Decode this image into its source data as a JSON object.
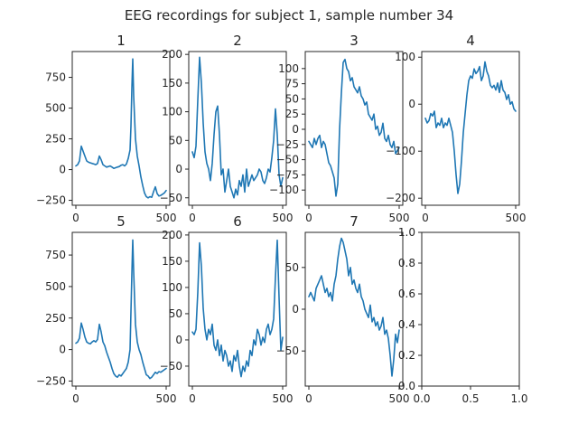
{
  "figure": {
    "title": "EEG recordings for subject 1, sample number 34",
    "line_color": "#1f77b4",
    "background": "#ffffff"
  },
  "chart_data": [
    {
      "type": "line",
      "title": "1",
      "xlim": [
        -20,
        520
      ],
      "ylim": [
        -290,
        960
      ],
      "xticks": [
        0,
        500
      ],
      "yticks": [
        -250,
        0,
        250,
        500,
        750
      ],
      "x": [
        0,
        10,
        20,
        30,
        40,
        50,
        60,
        70,
        80,
        90,
        100,
        110,
        120,
        130,
        140,
        150,
        160,
        170,
        180,
        190,
        200,
        210,
        220,
        230,
        240,
        250,
        260,
        270,
        280,
        290,
        300,
        305,
        310,
        315,
        320,
        330,
        340,
        350,
        360,
        370,
        380,
        390,
        400,
        410,
        420,
        430,
        440,
        450,
        460,
        470,
        480,
        490,
        500
      ],
      "y": [
        30,
        40,
        70,
        190,
        150,
        110,
        70,
        60,
        55,
        50,
        45,
        40,
        50,
        110,
        80,
        40,
        30,
        20,
        25,
        30,
        20,
        10,
        15,
        20,
        25,
        35,
        40,
        30,
        45,
        90,
        160,
        350,
        660,
        900,
        600,
        250,
        110,
        30,
        -60,
        -130,
        -190,
        -220,
        -230,
        -220,
        -225,
        -180,
        -140,
        -195,
        -215,
        -210,
        -200,
        -190,
        -170
      ]
    },
    {
      "type": "line",
      "title": "2",
      "xlim": [
        -20,
        520
      ],
      "ylim": [
        -63,
        205
      ],
      "xticks": [
        0,
        500
      ],
      "yticks": [
        -50,
        0,
        50,
        100,
        150,
        200
      ],
      "x": [
        0,
        10,
        20,
        30,
        40,
        50,
        60,
        70,
        80,
        90,
        100,
        110,
        120,
        130,
        140,
        150,
        160,
        170,
        180,
        190,
        200,
        210,
        220,
        230,
        240,
        250,
        260,
        270,
        280,
        290,
        300,
        310,
        320,
        330,
        340,
        350,
        360,
        370,
        380,
        390,
        400,
        410,
        420,
        430,
        440,
        450,
        460,
        470,
        480,
        490,
        500
      ],
      "y": [
        30,
        20,
        40,
        120,
        195,
        150,
        80,
        30,
        10,
        0,
        -20,
        10,
        60,
        100,
        110,
        60,
        -10,
        0,
        -40,
        -20,
        0,
        -30,
        -40,
        -50,
        -35,
        -45,
        -20,
        -30,
        -10,
        -40,
        0,
        -30,
        -20,
        -10,
        -20,
        -15,
        -10,
        0,
        -5,
        -20,
        -25,
        -15,
        0,
        -5,
        20,
        50,
        105,
        60,
        -10,
        -30,
        -15
      ]
    },
    {
      "type": "line",
      "title": "3",
      "xlim": [
        -20,
        520
      ],
      "ylim": [
        -125,
        128
      ],
      "xticks": [
        0,
        500
      ],
      "yticks": [
        -100,
        -75,
        -50,
        -25,
        0,
        25,
        50,
        75,
        100
      ],
      "x": [
        0,
        10,
        20,
        30,
        40,
        50,
        60,
        70,
        80,
        90,
        100,
        110,
        120,
        130,
        140,
        150,
        160,
        170,
        180,
        190,
        200,
        210,
        220,
        230,
        240,
        250,
        260,
        270,
        280,
        290,
        300,
        310,
        320,
        330,
        340,
        350,
        360,
        370,
        380,
        390,
        400,
        410,
        420,
        430,
        440,
        450,
        460,
        470,
        480,
        490,
        500
      ],
      "y": [
        -20,
        -25,
        -30,
        -15,
        -25,
        -15,
        -10,
        -30,
        -20,
        -25,
        -40,
        -55,
        -60,
        -70,
        -80,
        -110,
        -90,
        0,
        60,
        110,
        115,
        100,
        95,
        80,
        85,
        70,
        65,
        60,
        70,
        55,
        50,
        40,
        45,
        25,
        20,
        15,
        25,
        0,
        5,
        -10,
        -5,
        10,
        -15,
        -20,
        -10,
        -25,
        -30,
        -20,
        -40,
        -35,
        -30
      ]
    },
    {
      "type": "line",
      "title": "4",
      "xlim": [
        -20,
        520
      ],
      "ylim": [
        -215,
        112
      ],
      "xticks": [
        0,
        500
      ],
      "yticks": [
        -200,
        -100,
        0,
        100
      ],
      "x": [
        0,
        10,
        20,
        30,
        40,
        50,
        60,
        70,
        80,
        90,
        100,
        110,
        120,
        130,
        140,
        150,
        160,
        170,
        180,
        190,
        200,
        210,
        220,
        230,
        240,
        250,
        260,
        270,
        280,
        290,
        300,
        310,
        320,
        330,
        340,
        350,
        360,
        370,
        380,
        390,
        400,
        410,
        420,
        430,
        440,
        450,
        460,
        470,
        480,
        490,
        500
      ],
      "y": [
        -30,
        -40,
        -35,
        -20,
        -25,
        -15,
        -50,
        -40,
        -45,
        -30,
        -50,
        -40,
        -45,
        -30,
        -45,
        -60,
        -100,
        -150,
        -190,
        -170,
        -120,
        -60,
        -20,
        20,
        50,
        60,
        55,
        75,
        65,
        70,
        80,
        50,
        60,
        90,
        70,
        60,
        40,
        35,
        40,
        30,
        45,
        25,
        50,
        30,
        25,
        10,
        20,
        0,
        5,
        -10,
        -15
      ]
    },
    {
      "type": "line",
      "title": "5",
      "xlim": [
        -20,
        520
      ],
      "ylim": [
        -290,
        930
      ],
      "xticks": [
        0,
        500
      ],
      "yticks": [
        -250,
        0,
        250,
        500,
        750
      ],
      "x": [
        0,
        10,
        20,
        30,
        40,
        50,
        60,
        70,
        80,
        90,
        100,
        110,
        120,
        130,
        140,
        150,
        160,
        170,
        180,
        190,
        200,
        210,
        220,
        230,
        240,
        250,
        260,
        270,
        280,
        290,
        300,
        305,
        310,
        315,
        320,
        330,
        340,
        350,
        360,
        370,
        380,
        390,
        400,
        410,
        420,
        430,
        440,
        450,
        460,
        470,
        480,
        490,
        500
      ],
      "y": [
        50,
        60,
        90,
        210,
        160,
        100,
        60,
        50,
        45,
        60,
        70,
        60,
        80,
        200,
        140,
        60,
        30,
        -20,
        -60,
        -100,
        -150,
        -190,
        -210,
        -220,
        -200,
        -210,
        -190,
        -170,
        -150,
        -100,
        0,
        300,
        600,
        870,
        620,
        200,
        60,
        0,
        -40,
        -100,
        -150,
        -200,
        -210,
        -230,
        -220,
        -200,
        -180,
        -190,
        -175,
        -180,
        -170,
        -160,
        -150
      ]
    },
    {
      "type": "line",
      "title": "6",
      "xlim": [
        -20,
        520
      ],
      "ylim": [
        -88,
        205
      ],
      "xticks": [
        0,
        500
      ],
      "yticks": [
        -50,
        0,
        50,
        100,
        150,
        200
      ],
      "x": [
        0,
        10,
        20,
        30,
        40,
        50,
        60,
        70,
        80,
        90,
        100,
        110,
        120,
        130,
        140,
        150,
        160,
        170,
        180,
        190,
        200,
        210,
        220,
        230,
        240,
        250,
        260,
        270,
        280,
        290,
        300,
        310,
        320,
        330,
        340,
        350,
        360,
        370,
        380,
        390,
        400,
        410,
        420,
        430,
        440,
        450,
        460,
        470,
        480,
        490,
        500
      ],
      "y": [
        15,
        10,
        20,
        90,
        185,
        140,
        60,
        20,
        0,
        20,
        10,
        30,
        -10,
        -20,
        0,
        -30,
        -10,
        -40,
        -20,
        -30,
        -50,
        -40,
        -60,
        -30,
        -40,
        -20,
        -50,
        -70,
        -50,
        -60,
        -40,
        -50,
        -20,
        -30,
        0,
        -10,
        20,
        10,
        -10,
        5,
        -5,
        20,
        30,
        10,
        20,
        40,
        120,
        190,
        80,
        -20,
        5
      ]
    },
    {
      "type": "line",
      "title": "7",
      "xlim": [
        -20,
        520
      ],
      "ylim": [
        -92,
        92
      ],
      "xticks": [
        0,
        500
      ],
      "yticks": [
        -50,
        0,
        50
      ],
      "x": [
        0,
        10,
        20,
        30,
        40,
        50,
        60,
        70,
        80,
        90,
        100,
        110,
        120,
        130,
        140,
        150,
        160,
        170,
        180,
        190,
        200,
        210,
        220,
        230,
        240,
        250,
        260,
        270,
        280,
        290,
        300,
        310,
        320,
        330,
        340,
        350,
        360,
        370,
        380,
        390,
        400,
        410,
        420,
        430,
        440,
        450,
        460,
        470,
        480,
        490,
        500
      ],
      "y": [
        15,
        20,
        15,
        10,
        25,
        30,
        35,
        40,
        30,
        20,
        25,
        15,
        20,
        10,
        30,
        40,
        60,
        75,
        85,
        80,
        70,
        60,
        40,
        50,
        30,
        35,
        25,
        20,
        30,
        15,
        10,
        0,
        -5,
        -10,
        5,
        -15,
        -10,
        -20,
        -15,
        -25,
        -20,
        -10,
        -30,
        -25,
        -35,
        -55,
        -80,
        -60,
        -30,
        -40,
        -25
      ]
    },
    {
      "type": "line",
      "title": "",
      "xlim": [
        0,
        1
      ],
      "ylim": [
        0,
        1
      ],
      "xticks": [
        0.0,
        0.5,
        1.0
      ],
      "yticks": [
        0.0,
        0.2,
        0.4,
        0.6,
        0.8,
        1.0
      ],
      "xtick_labels": [
        "0.0",
        "0.5",
        "1.0"
      ],
      "ytick_labels": [
        "0.0",
        "0.2",
        "0.4",
        "0.6",
        "0.8",
        "1.0"
      ],
      "x": [],
      "y": []
    }
  ]
}
